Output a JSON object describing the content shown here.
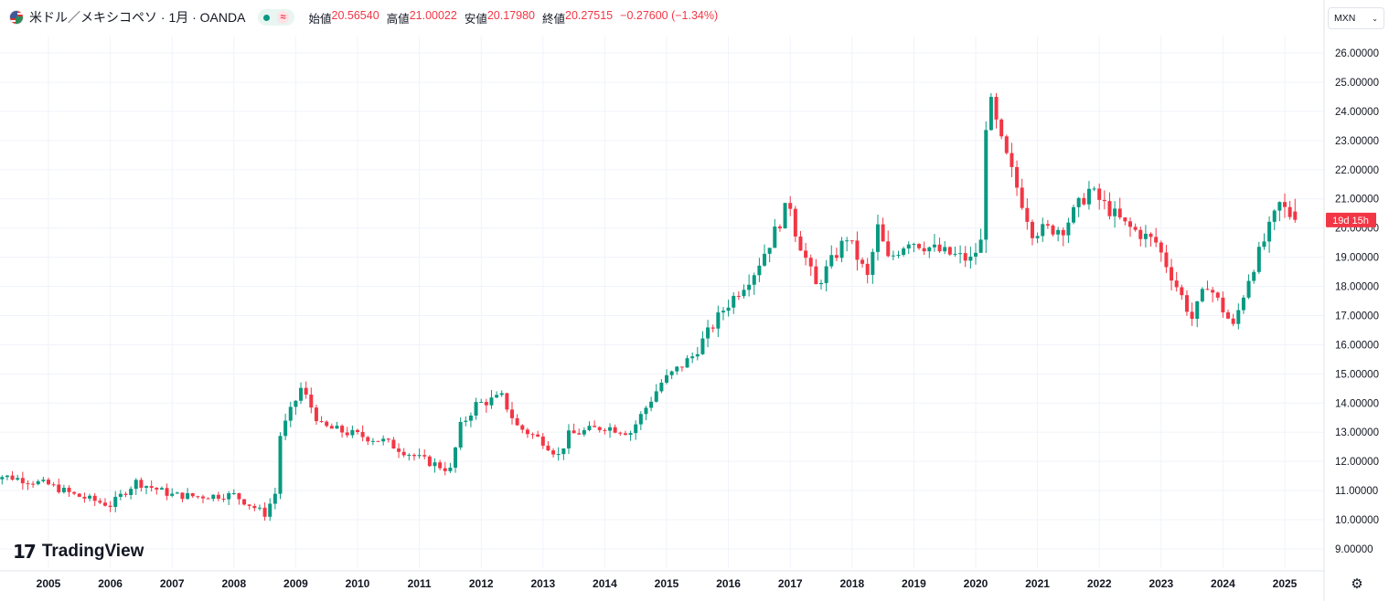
{
  "header": {
    "symbol_title": "米ドル／メキシコペソ · 1月 · OANDA",
    "approx_icon": "≈",
    "ohlc": [
      {
        "label": "始値",
        "value": "20.56540"
      },
      {
        "label": "高値",
        "value": "21.00022"
      },
      {
        "label": "安値",
        "value": "20.17980"
      },
      {
        "label": "終値",
        "value": "20.27515"
      }
    ],
    "change": "−0.27600 (−1.34%)"
  },
  "currency_button": {
    "label": "MXN",
    "icon": "chevron-down-icon"
  },
  "logo": {
    "mark": "17",
    "text": "TradingView"
  },
  "settings_icon": "gear-icon",
  "colors": {
    "up": "#089981",
    "down": "#f23645",
    "grid": "#f0f3fa",
    "text": "#131722"
  },
  "chart_data": {
    "type": "candlestick",
    "interval": "monthly",
    "symbol": "USDMXN",
    "currency": "MXN",
    "y_ticks": [
      "26.00000",
      "25.00000",
      "24.00000",
      "23.00000",
      "22.00000",
      "21.00000",
      "20.00000",
      "19.00000",
      "18.00000",
      "17.00000",
      "16.00000",
      "15.00000",
      "14.00000",
      "13.00000",
      "12.00000",
      "11.00000",
      "10.00000",
      "9.00000"
    ],
    "x_ticks": [
      "2005",
      "2006",
      "2007",
      "2008",
      "2009",
      "2010",
      "2011",
      "2012",
      "2013",
      "2014",
      "2015",
      "2016",
      "2017",
      "2018",
      "2019",
      "2020",
      "2021",
      "2022",
      "2023",
      "2024",
      "2025"
    ],
    "ylim": [
      8.6,
      26.5
    ],
    "countdown_badge": "19d 15h",
    "last_close": 20.27515,
    "anchors": [
      [
        "2004-01",
        11.55
      ],
      [
        "2004-06",
        11.45
      ],
      [
        "2005-01",
        11.2
      ],
      [
        "2005-06",
        10.85
      ],
      [
        "2006-01",
        10.5
      ],
      [
        "2006-06",
        11.3
      ],
      [
        "2007-01",
        10.85
      ],
      [
        "2007-06",
        10.8
      ],
      [
        "2008-01",
        10.85
      ],
      [
        "2008-07",
        10.2
      ],
      [
        "2008-09",
        10.9
      ],
      [
        "2008-10",
        12.9
      ],
      [
        "2009-02",
        14.5
      ],
      [
        "2009-03",
        14.2
      ],
      [
        "2009-06",
        13.2
      ],
      [
        "2010-01",
        12.9
      ],
      [
        "2010-06",
        12.7
      ],
      [
        "2011-01",
        12.1
      ],
      [
        "2011-07",
        11.7
      ],
      [
        "2011-09",
        13.2
      ],
      [
        "2011-12",
        13.95
      ],
      [
        "2012-05",
        14.2
      ],
      [
        "2012-08",
        13.2
      ],
      [
        "2013-01",
        12.7
      ],
      [
        "2013-04",
        12.2
      ],
      [
        "2013-06",
        12.9
      ],
      [
        "2014-01",
        13.2
      ],
      [
        "2014-06",
        13.0
      ],
      [
        "2014-12",
        14.7
      ],
      [
        "2015-06",
        15.6
      ],
      [
        "2015-12",
        17.2
      ],
      [
        "2016-06",
        18.5
      ],
      [
        "2016-09",
        19.5
      ],
      [
        "2016-12",
        20.6
      ],
      [
        "2017-01",
        20.8
      ],
      [
        "2017-02",
        19.9
      ],
      [
        "2017-06",
        18.0
      ],
      [
        "2017-12",
        19.7
      ],
      [
        "2018-04",
        18.3
      ],
      [
        "2018-06",
        20.0
      ],
      [
        "2018-08",
        18.9
      ],
      [
        "2018-12",
        19.6
      ],
      [
        "2019-06",
        19.2
      ],
      [
        "2019-12",
        18.9
      ],
      [
        "2020-02",
        19.5
      ],
      [
        "2020-03",
        23.6
      ],
      [
        "2020-04",
        24.2
      ],
      [
        "2020-06",
        22.9
      ],
      [
        "2020-12",
        19.9
      ],
      [
        "2021-06",
        20.0
      ],
      [
        "2021-11",
        21.3
      ],
      [
        "2022-06",
        20.1
      ],
      [
        "2022-12",
        19.5
      ],
      [
        "2023-07",
        16.9
      ],
      [
        "2023-10",
        18.1
      ],
      [
        "2024-03",
        16.6
      ],
      [
        "2024-06",
        18.3
      ],
      [
        "2024-12",
        20.8
      ],
      [
        "2025-03",
        20.28
      ]
    ]
  }
}
